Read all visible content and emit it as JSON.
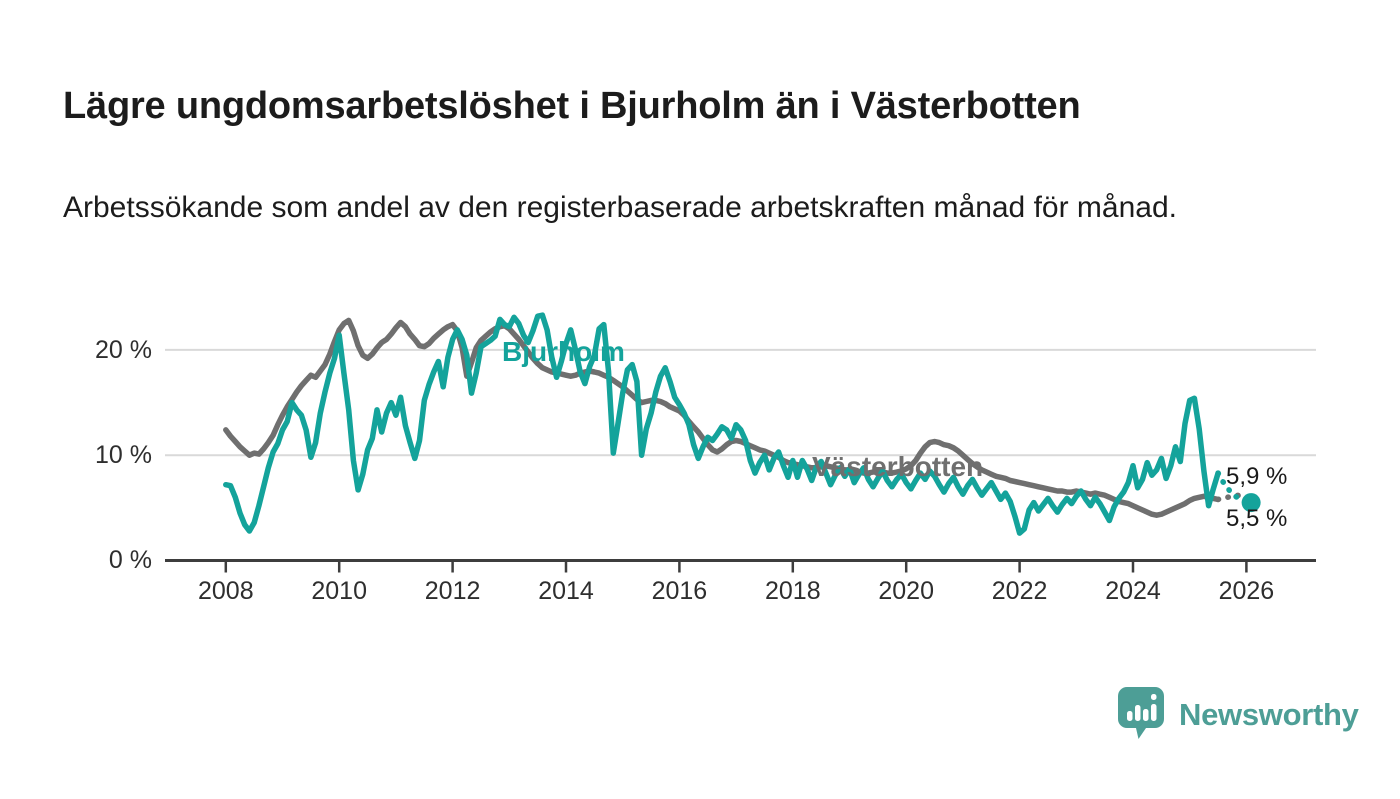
{
  "header": {
    "title": "Lägre ungdomsarbetslöshet i Bjurholm än i Västerbotten",
    "subtitle": "Arbetssökande som andel av den registerbaserade arbetskraften månad för månad."
  },
  "branding": {
    "logo_text": "Newsworthy",
    "logo_icon": "speech-bubble-bar-chart-icon",
    "color": "#4d9e96"
  },
  "colors": {
    "bjurholm": "#14a39b",
    "vasterbotten": "#6f6f6f",
    "gridline": "#d9d9d9",
    "axis": "#3d3d3d",
    "text": "#1c1c1c"
  },
  "chart_data": {
    "type": "line",
    "title": "Lägre ungdomsarbetslöshet i Bjurholm än i Västerbotten",
    "subtitle": "Arbetssökande som andel av den registerbaserade arbetskraften månad för månad.",
    "x_start": "2008-01",
    "x_end": "2026-02",
    "frequency": "monthly",
    "x_ticks": [
      2008,
      2010,
      2012,
      2014,
      2016,
      2018,
      2020,
      2022,
      2024,
      2026
    ],
    "y_ticks": [
      {
        "v": 0,
        "label": "0 %"
      },
      {
        "v": 10,
        "label": "10 %"
      },
      {
        "v": 20,
        "label": "20 %"
      }
    ],
    "ylim": [
      0,
      24
    ],
    "grid": "horizontal",
    "legend": "inline-labels",
    "preliminary_from_index": 210,
    "series": [
      {
        "name": "Bjurholm",
        "color": "#14a39b",
        "end_label": "5,5 %",
        "end_marker": true,
        "values": [
          7.2,
          7.1,
          6.0,
          4.5,
          3.4,
          2.8,
          3.6,
          5.2,
          7.0,
          8.8,
          10.3,
          11.1,
          12.4,
          13.2,
          15.0,
          14.3,
          13.8,
          12.4,
          9.8,
          11.2,
          14.0,
          16.0,
          17.8,
          19.2,
          21.4,
          17.8,
          14.3,
          9.5,
          6.7,
          8.2,
          10.5,
          11.6,
          14.3,
          12.2,
          14.0,
          15.0,
          13.8,
          15.5,
          12.8,
          11.2,
          9.7,
          11.4,
          15.2,
          16.7,
          17.9,
          18.9,
          16.5,
          19.3,
          21.0,
          21.9,
          21.0,
          19.5,
          15.9,
          17.8,
          20.3,
          20.6,
          20.9,
          21.3,
          22.9,
          22.4,
          22.2,
          23.1,
          22.5,
          21.4,
          20.7,
          21.8,
          23.2,
          23.3,
          21.9,
          19.3,
          17.4,
          18.9,
          20.6,
          21.9,
          20.0,
          17.9,
          16.8,
          18.4,
          19.5,
          22.0,
          22.4,
          18.0,
          10.2,
          13.0,
          15.9,
          18.1,
          18.6,
          17.0,
          10.0,
          12.5,
          14.0,
          16.0,
          17.5,
          18.3,
          17.0,
          15.5,
          14.8,
          14.0,
          12.9,
          11.0,
          9.7,
          10.8,
          11.7,
          11.4,
          12.0,
          12.7,
          12.4,
          11.6,
          12.9,
          12.4,
          11.4,
          9.5,
          8.3,
          9.3,
          10.0,
          8.6,
          9.7,
          10.3,
          9.0,
          7.9,
          9.5,
          7.9,
          9.5,
          8.7,
          7.6,
          8.9,
          9.4,
          8.3,
          7.2,
          8.1,
          8.8,
          8.0,
          8.7,
          7.4,
          8.2,
          8.8,
          7.7,
          7.0,
          7.8,
          8.5,
          7.6,
          7.0,
          7.7,
          8.2,
          7.4,
          6.8,
          7.6,
          8.3,
          7.7,
          8.5,
          8.0,
          7.2,
          6.5,
          7.3,
          7.9,
          7.0,
          6.3,
          7.1,
          7.7,
          6.9,
          6.2,
          6.8,
          7.4,
          6.6,
          5.8,
          6.4,
          5.6,
          4.2,
          2.6,
          3.0,
          4.8,
          5.5,
          4.7,
          5.3,
          5.9,
          5.2,
          4.6,
          5.3,
          5.9,
          5.4,
          6.1,
          6.6,
          5.8,
          5.2,
          6.0,
          5.4,
          4.6,
          3.8,
          5.1,
          5.9,
          6.5,
          7.4,
          9.0,
          6.9,
          7.7,
          9.3,
          8.1,
          8.6,
          9.7,
          7.8,
          9.0,
          10.8,
          9.4,
          13.0,
          15.2,
          15.4,
          12.5,
          8.5,
          5.2,
          6.8,
          8.3,
          7.5,
          6.9,
          6.3,
          6.0,
          5.8,
          5.6,
          5.5
        ]
      },
      {
        "name": "Västerbotten",
        "color": "#6f6f6f",
        "end_label": "5,9 %",
        "end_marker": false,
        "values": [
          12.4,
          11.8,
          11.3,
          10.8,
          10.4,
          10.0,
          10.2,
          10.1,
          10.6,
          11.2,
          11.9,
          12.9,
          13.8,
          14.6,
          15.3,
          16.0,
          16.6,
          17.1,
          17.6,
          17.4,
          18.0,
          18.6,
          19.6,
          20.8,
          21.9,
          22.5,
          22.8,
          21.8,
          20.4,
          19.5,
          19.2,
          19.6,
          20.2,
          20.7,
          21.0,
          21.5,
          22.1,
          22.6,
          22.2,
          21.5,
          21.0,
          20.4,
          20.3,
          20.6,
          21.1,
          21.5,
          21.9,
          22.2,
          22.4,
          21.8,
          20.2,
          17.5,
          18.8,
          20.2,
          20.9,
          21.3,
          21.7,
          22.0,
          22.2,
          22.3,
          22.0,
          21.5,
          21.0,
          20.4,
          19.8,
          19.2,
          18.7,
          18.3,
          18.1,
          17.9,
          17.8,
          17.7,
          17.6,
          17.5,
          17.6,
          17.8,
          17.9,
          18.0,
          17.9,
          17.8,
          17.6,
          17.4,
          17.1,
          16.8,
          16.5,
          16.1,
          15.7,
          15.3,
          15.0,
          15.1,
          15.2,
          15.2,
          15.1,
          14.9,
          14.6,
          14.4,
          14.2,
          13.8,
          13.2,
          12.7,
          12.2,
          11.6,
          11.0,
          10.5,
          10.3,
          10.6,
          11.0,
          11.3,
          11.4,
          11.3,
          11.1,
          10.9,
          10.7,
          10.5,
          10.4,
          10.2,
          10.0,
          9.8,
          9.5,
          9.3,
          9.2,
          9.1,
          9.0,
          8.9,
          8.8,
          8.8,
          8.9,
          9.0,
          8.9,
          8.8,
          8.7,
          8.6,
          8.6,
          8.5,
          8.4,
          8.3,
          8.3,
          8.4,
          8.5,
          8.4,
          8.3,
          8.3,
          8.4,
          8.5,
          8.7,
          9.0,
          9.5,
          10.2,
          10.8,
          11.2,
          11.3,
          11.2,
          11.0,
          10.9,
          10.7,
          10.4,
          10.0,
          9.6,
          9.2,
          8.9,
          8.6,
          8.4,
          8.2,
          8.0,
          7.9,
          7.8,
          7.6,
          7.5,
          7.4,
          7.3,
          7.2,
          7.1,
          7.0,
          6.9,
          6.8,
          6.7,
          6.6,
          6.6,
          6.5,
          6.5,
          6.6,
          6.5,
          6.4,
          6.3,
          6.4,
          6.3,
          6.2,
          6.0,
          5.8,
          5.6,
          5.5,
          5.4,
          5.2,
          5.0,
          4.8,
          4.6,
          4.4,
          4.3,
          4.4,
          4.6,
          4.8,
          5.0,
          5.2,
          5.4,
          5.7,
          5.9,
          6.0,
          6.1,
          6.0,
          5.9,
          5.8,
          5.9,
          6.0,
          6.1,
          6.2,
          6.1,
          6.0,
          5.9
        ]
      }
    ]
  }
}
